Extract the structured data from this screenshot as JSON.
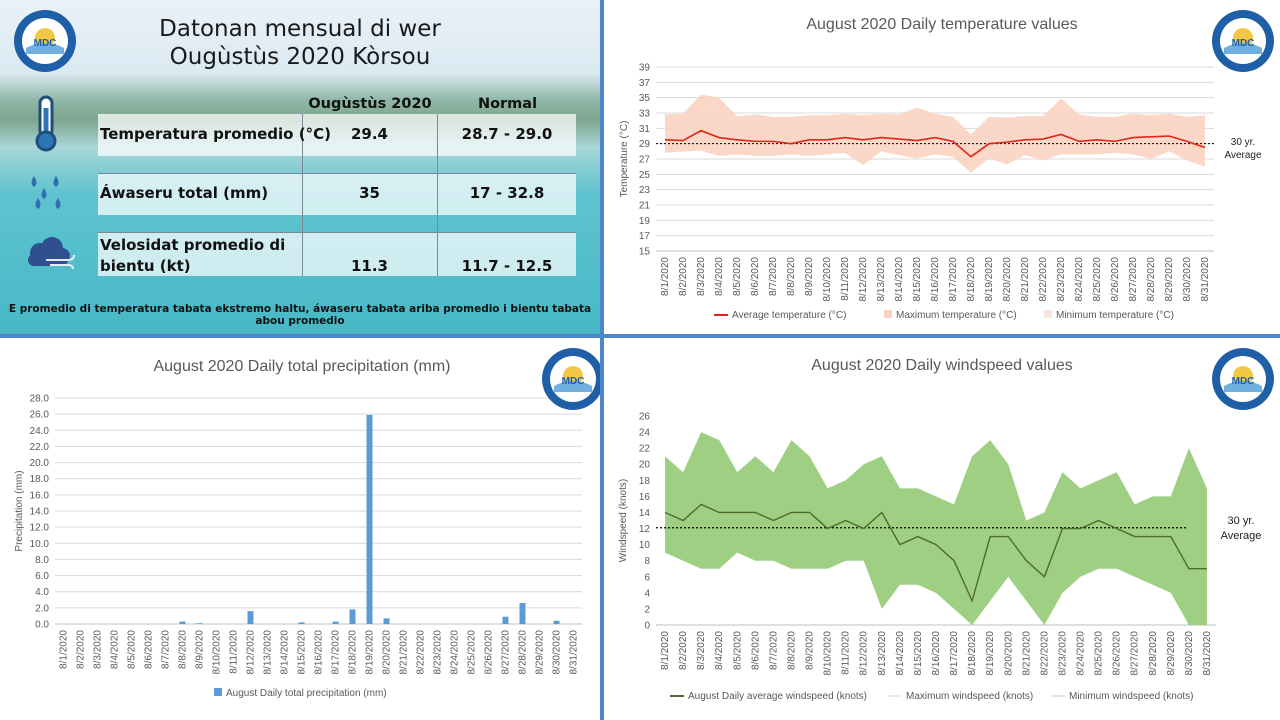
{
  "summary": {
    "title_line1": "Datonan mensual di wer",
    "title_line2": "Ougùstùs 2020 Kòrsou",
    "col_current": "Ougùstùs 2020",
    "col_normal": "Normal",
    "rows": [
      {
        "label_line1": "Temperatura promedio (°C)",
        "label_line2": "",
        "current": "29.4",
        "normal": "28.7  - 29.0",
        "icon": "thermometer-icon"
      },
      {
        "label_line1": "Áwaseru total (mm)",
        "label_line2": "",
        "current": "35",
        "normal": "17  - 32.8",
        "icon": "rain-drops-icon"
      },
      {
        "label_line1": "Velosidat promedio di",
        "label_line2": "bientu (kt)",
        "current": "11.3",
        "normal": "11.7  - 12.5",
        "icon": "wind-cloud-icon"
      }
    ],
    "note": "E promedio di temperatura tabata ekstremo haltu, áwaseru tabata ariba promedio i bientu tabata abou promedio"
  },
  "logo": {
    "text": "MDC",
    "icon": "meteorological-department-curacao-logo"
  },
  "colors": {
    "temp_avg": "#e0231d",
    "temp_band": "#f9d3c1",
    "precip_bar": "#5b9bd5",
    "wind_avg": "#4e6b2e",
    "wind_band": "#9ecf82",
    "avg_line": "#000000"
  },
  "chart_data": [
    {
      "id": "temperature",
      "type": "area",
      "title": "August 2020 Daily temperature values",
      "ylabel": "Temperature (°C)",
      "xlabel": "",
      "ylim": [
        15,
        39
      ],
      "yticks": [
        15,
        17,
        19,
        21,
        23,
        25,
        27,
        29,
        31,
        33,
        35,
        37,
        39
      ],
      "categories": [
        "8/1/2020",
        "8/2/2020",
        "8/3/2020",
        "8/4/2020",
        "8/5/2020",
        "8/6/2020",
        "8/7/2020",
        "8/8/2020",
        "8/9/2020",
        "8/10/2020",
        "8/11/2020",
        "8/12/2020",
        "8/13/2020",
        "8/14/2020",
        "8/15/2020",
        "8/16/2020",
        "8/17/2020",
        "8/18/2020",
        "8/19/2020",
        "8/20/2020",
        "8/21/2020",
        "8/22/2020",
        "8/23/2020",
        "8/24/2020",
        "8/25/2020",
        "8/26/2020",
        "8/27/2020",
        "8/28/2020",
        "8/29/2020",
        "8/30/2020",
        "8/31/2020"
      ],
      "series": [
        {
          "name": "Average temperature (°C)",
          "values": [
            29.5,
            29.4,
            30.7,
            29.8,
            29.5,
            29.3,
            29.3,
            29.0,
            29.5,
            29.5,
            29.8,
            29.5,
            29.8,
            29.6,
            29.4,
            29.8,
            29.3,
            27.3,
            29.0,
            29.2,
            29.5,
            29.6,
            30.2,
            29.3,
            29.5,
            29.3,
            29.8,
            29.9,
            30.0,
            29.3,
            28.5
          ]
        },
        {
          "name": "Maximum temperature (°C)",
          "values": [
            32.8,
            32.9,
            35.4,
            35.0,
            32.6,
            32.8,
            32.5,
            32.5,
            32.7,
            32.7,
            32.9,
            32.7,
            32.9,
            32.8,
            33.7,
            32.9,
            32.5,
            30.2,
            32.5,
            32.4,
            32.6,
            32.6,
            34.9,
            32.8,
            32.5,
            32.5,
            32.9,
            32.7,
            32.9,
            32.5,
            32.7
          ]
        },
        {
          "name": "Minimum temperature (°C)",
          "values": [
            27.8,
            28.0,
            28.1,
            27.4,
            27.6,
            27.4,
            27.4,
            27.6,
            27.4,
            27.6,
            27.8,
            26.2,
            28.0,
            27.5,
            27.1,
            27.6,
            27.3,
            25.2,
            27.1,
            26.3,
            27.5,
            26.8,
            27.6,
            27.6,
            27.6,
            27.8,
            27.6,
            27.0,
            28.0,
            26.8,
            26.0
          ]
        }
      ],
      "reference_line": {
        "value": 29.0,
        "label_line1": "30 yr.",
        "label_line2": "Average"
      },
      "grid": true,
      "legend": "bottom"
    },
    {
      "id": "precipitation",
      "type": "bar",
      "title": "August 2020 Daily total precipitation (mm)",
      "ylabel": "Precipitation (mm)",
      "xlabel": "",
      "ylim": [
        0,
        28
      ],
      "yticks": [
        "0.0",
        "2.0",
        "4.0",
        "6.0",
        "8.0",
        "10.0",
        "12.0",
        "14.0",
        "16.0",
        "18.0",
        "20.0",
        "22.0",
        "24.0",
        "26.0",
        "28.0"
      ],
      "categories": [
        "8/1/2020",
        "8/2/2020",
        "8/3/2020",
        "8/4/2020",
        "8/5/2020",
        "8/6/2020",
        "8/7/2020",
        "8/8/2020",
        "8/9/2020",
        "8/10/2020",
        "8/11/2020",
        "8/12/2020",
        "8/13/2020",
        "8/14/2020",
        "8/15/2020",
        "8/16/2020",
        "8/17/2020",
        "8/18/2020",
        "8/19/2020",
        "8/20/2020",
        "8/21/2020",
        "8/22/2020",
        "8/23/2020",
        "8/24/2020",
        "8/25/2020",
        "8/26/2020",
        "8/27/2020",
        "8/28/2020",
        "8/29/2020",
        "8/30/2020",
        "8/31/2020"
      ],
      "series": [
        {
          "name": "August Daily total precipitation (mm)",
          "values": [
            0,
            0,
            0,
            0,
            0,
            0,
            0,
            0.3,
            0.1,
            0,
            0,
            1.6,
            0,
            0,
            0.2,
            0,
            0.3,
            1.8,
            25.9,
            0.7,
            0,
            0,
            0,
            0,
            0,
            0,
            0.9,
            2.6,
            0,
            0.4,
            0
          ]
        }
      ],
      "grid": true,
      "legend": "bottom"
    },
    {
      "id": "windspeed",
      "type": "area",
      "title": "August 2020 Daily windspeed values",
      "ylabel": "Windspeed (knots)",
      "xlabel": "",
      "ylim": [
        0,
        26
      ],
      "yticks": [
        0,
        2,
        4,
        6,
        8,
        10,
        12,
        14,
        16,
        18,
        20,
        22,
        24,
        26
      ],
      "categories": [
        "8/1/2020",
        "8/2/2020",
        "8/3/2020",
        "8/4/2020",
        "8/5/2020",
        "8/6/2020",
        "8/7/2020",
        "8/8/2020",
        "8/9/2020",
        "8/10/2020",
        "8/11/2020",
        "8/12/2020",
        "8/13/2020",
        "8/14/2020",
        "8/15/2020",
        "8/16/2020",
        "8/17/2020",
        "8/18/2020",
        "8/19/2020",
        "8/20/2020",
        "8/21/2020",
        "8/22/2020",
        "8/23/2020",
        "8/24/2020",
        "8/25/2020",
        "8/26/2020",
        "8/27/2020",
        "8/28/2020",
        "8/29/2020",
        "8/30/2020",
        "8/31/2020"
      ],
      "series": [
        {
          "name": "August Daily average windspeed (knots)",
          "values": [
            14,
            13,
            15,
            14,
            14,
            14,
            13,
            14,
            14,
            12,
            13,
            12,
            14,
            10,
            11,
            10,
            8,
            3,
            11,
            11,
            8,
            6,
            12,
            12,
            13,
            12,
            11,
            11,
            11,
            7,
            7
          ]
        },
        {
          "name": "Maximum windspeed (knots)",
          "values": [
            21,
            19,
            24,
            23,
            19,
            21,
            19,
            23,
            21,
            17,
            18,
            20,
            21,
            17,
            17,
            16,
            15,
            21,
            23,
            20,
            13,
            14,
            19,
            17,
            18,
            19,
            15,
            16,
            16,
            22,
            17
          ]
        },
        {
          "name": "Minimum windspeed (knots)",
          "values": [
            9,
            8,
            7,
            7,
            9,
            8,
            8,
            7,
            7,
            7,
            8,
            8,
            2,
            5,
            5,
            4,
            2,
            0,
            3,
            6,
            3,
            0,
            4,
            6,
            7,
            7,
            6,
            5,
            4,
            0,
            0
          ]
        }
      ],
      "reference_line": {
        "value": 12.1,
        "label_line1": "30 yr.",
        "label_line2": "Average"
      },
      "grid": false,
      "legend": "bottom"
    }
  ]
}
